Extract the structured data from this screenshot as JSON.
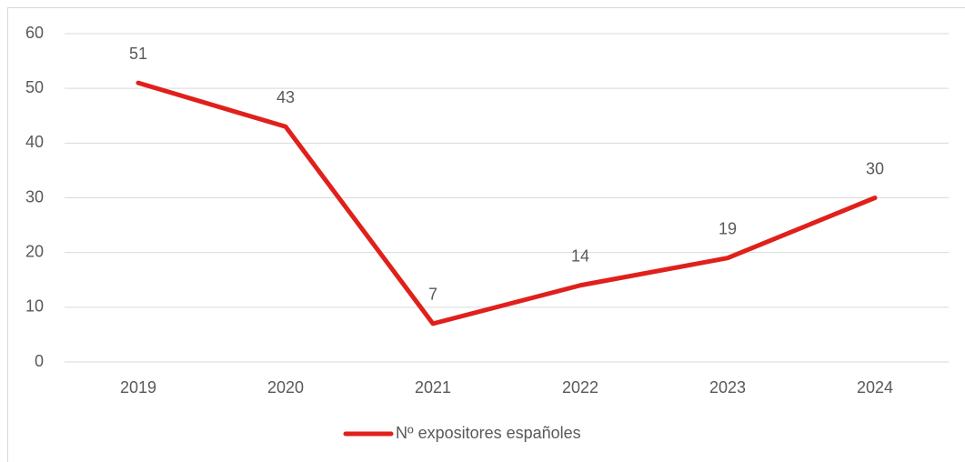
{
  "chart_data": {
    "type": "line",
    "categories": [
      "2019",
      "2020",
      "2021",
      "2022",
      "2023",
      "2024"
    ],
    "series": [
      {
        "name": "Nº expositores españoles",
        "color": "#e0201b",
        "values": [
          51,
          43,
          7,
          14,
          19,
          30
        ]
      }
    ],
    "ylim": [
      0,
      60
    ],
    "yticks": [
      0,
      10,
      20,
      30,
      40,
      50,
      60
    ],
    "grid": true,
    "legend": "bottom"
  }
}
